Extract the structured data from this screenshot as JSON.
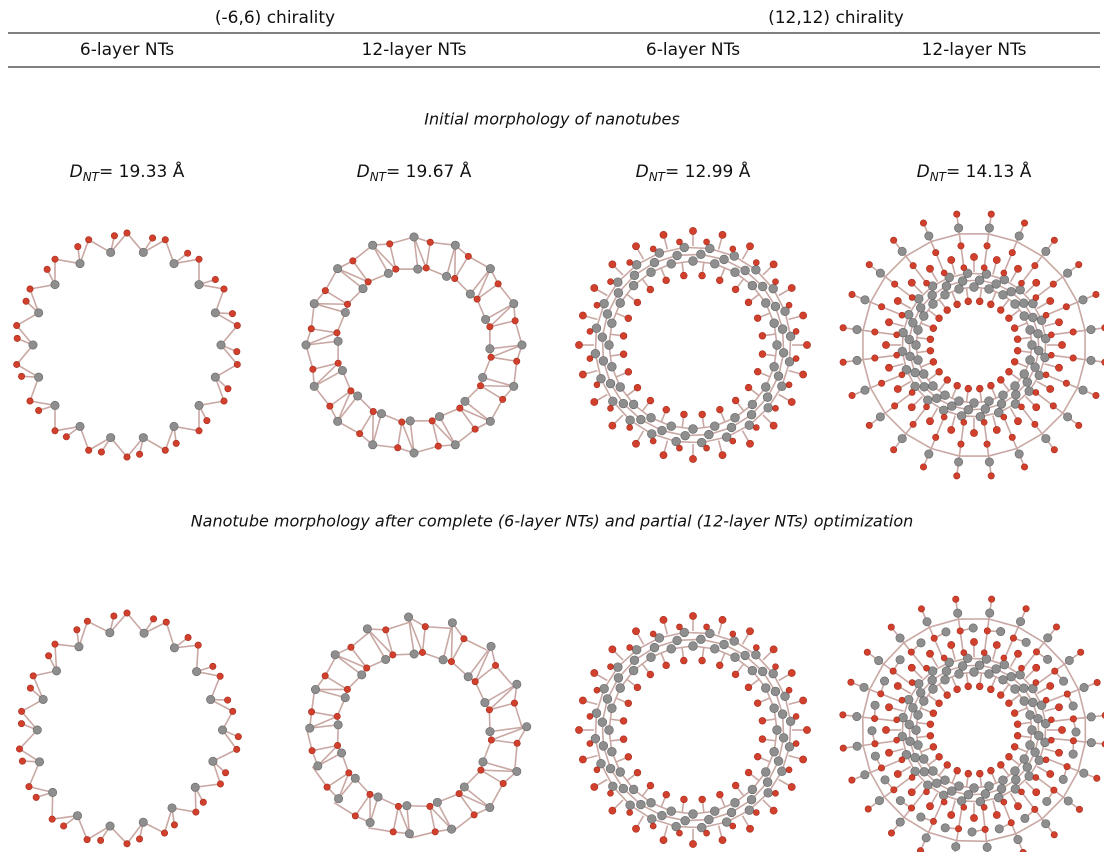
{
  "table": {
    "groups": [
      "(-6,6) chirality",
      "(12,12) chirality"
    ],
    "columns": [
      "6-layer NTs",
      "12-layer NTs",
      "6-layer NTs",
      "12-layer NTs"
    ]
  },
  "captions": [
    "Initial morphology of nanotubes",
    "Nanotube morphology after complete (6-layer NTs) and partial (12-layer NTs) optimization"
  ],
  "diameters": [
    {
      "symbol": "D",
      "sub": "NT",
      "value": "= 19.33 Å"
    },
    {
      "symbol": "D",
      "sub": "NT",
      "value": "= 19.67 Å"
    },
    {
      "symbol": "D",
      "sub": "NT",
      "value": "= 12.99 Å"
    },
    {
      "symbol": "D",
      "sub": "NT",
      "value": "= 14.13 Å"
    }
  ]
}
